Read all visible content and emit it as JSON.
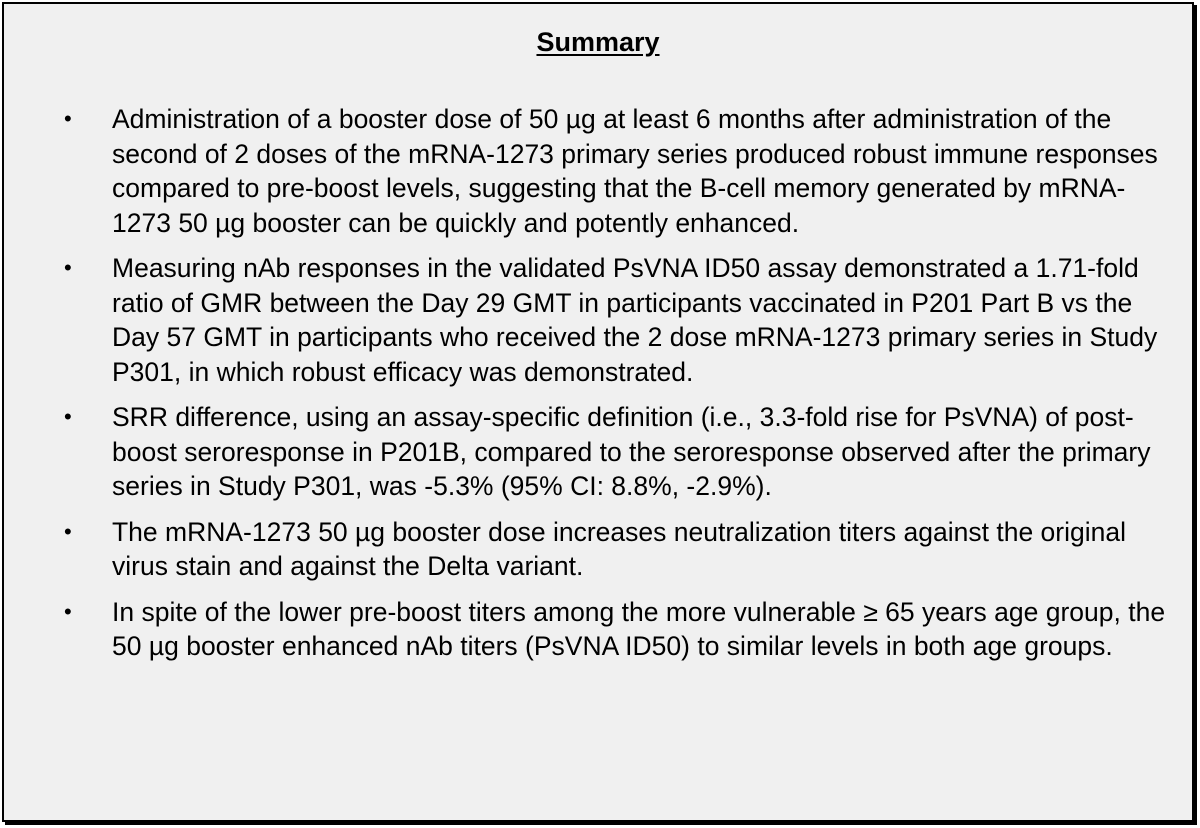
{
  "summary": {
    "title": "Summary",
    "bullet_glyph": "•",
    "items": [
      "Administration of a booster dose of 50 µg at least 6 months after administration of the second of 2 doses of the mRNA-1273 primary series produced robust immune responses compared to pre-boost levels, suggesting that the B-cell memory generated by mRNA-1273 50 µg booster can be quickly and potently enhanced.",
      "Measuring nAb responses in the validated PsVNA ID50 assay demonstrated a 1.71-fold ratio of GMR between the Day 29 GMT in participants vaccinated in P201 Part B vs the Day 57 GMT in participants who received the 2 dose mRNA-1273 primary series in Study P301, in which robust efficacy was demonstrated.",
      "SRR difference, using an assay-specific definition (i.e., 3.3-fold rise for PsVNA) of post-boost seroresponse in P201B, compared to the seroresponse observed after the primary series in Study P301, was -5.3% (95% CI: 8.8%, -2.9%).",
      "The mRNA-1273 50 µg booster dose increases neutralization titers against the original virus stain and against the Delta variant.",
      "In spite of the lower pre-boost titers among the more vulnerable ≥ 65 years age group, the 50 µg booster enhanced nAb titers (PsVNA ID50) to similar levels in both age groups."
    ]
  }
}
